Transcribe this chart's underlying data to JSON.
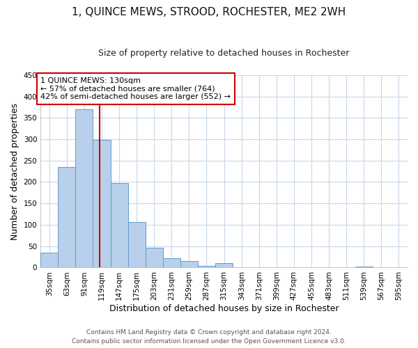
{
  "title": "1, QUINCE MEWS, STROOD, ROCHESTER, ME2 2WH",
  "subtitle": "Size of property relative to detached houses in Rochester",
  "xlabel": "Distribution of detached houses by size in Rochester",
  "ylabel": "Number of detached properties",
  "bar_values": [
    35,
    235,
    370,
    298,
    198,
    106,
    46,
    22,
    15,
    4,
    10,
    1,
    0,
    0,
    0,
    0,
    0,
    0,
    2,
    0,
    0
  ],
  "bin_labels": [
    "35sqm",
    "63sqm",
    "91sqm",
    "119sqm",
    "147sqm",
    "175sqm",
    "203sqm",
    "231sqm",
    "259sqm",
    "287sqm",
    "315sqm",
    "343sqm",
    "371sqm",
    "399sqm",
    "427sqm",
    "455sqm",
    "483sqm",
    "511sqm",
    "539sqm",
    "567sqm",
    "595sqm"
  ],
  "bin_edges": [
    35,
    63,
    91,
    119,
    147,
    175,
    203,
    231,
    259,
    287,
    315,
    343,
    371,
    399,
    427,
    455,
    483,
    511,
    539,
    567,
    595
  ],
  "bin_width": 28,
  "bar_color": "#b8d0eb",
  "bar_edge_color": "#6699cc",
  "vline_x": 130,
  "vline_color": "#cc0000",
  "ylim": [
    0,
    450
  ],
  "yticks": [
    0,
    50,
    100,
    150,
    200,
    250,
    300,
    350,
    400,
    450
  ],
  "annotation_title": "1 QUINCE MEWS: 130sqm",
  "annotation_line1": "← 57% of detached houses are smaller (764)",
  "annotation_line2": "42% of semi-detached houses are larger (552) →",
  "annotation_box_color": "#ffffff",
  "annotation_box_edge": "#cc0000",
  "footer1": "Contains HM Land Registry data © Crown copyright and database right 2024.",
  "footer2": "Contains public sector information licensed under the Open Government Licence v3.0.",
  "background_color": "#ffffff",
  "grid_color": "#c8d8ec",
  "title_fontsize": 11,
  "subtitle_fontsize": 9,
  "xlabel_fontsize": 9,
  "ylabel_fontsize": 9,
  "tick_fontsize": 7.5,
  "annot_fontsize": 8,
  "footer_fontsize": 6.5
}
